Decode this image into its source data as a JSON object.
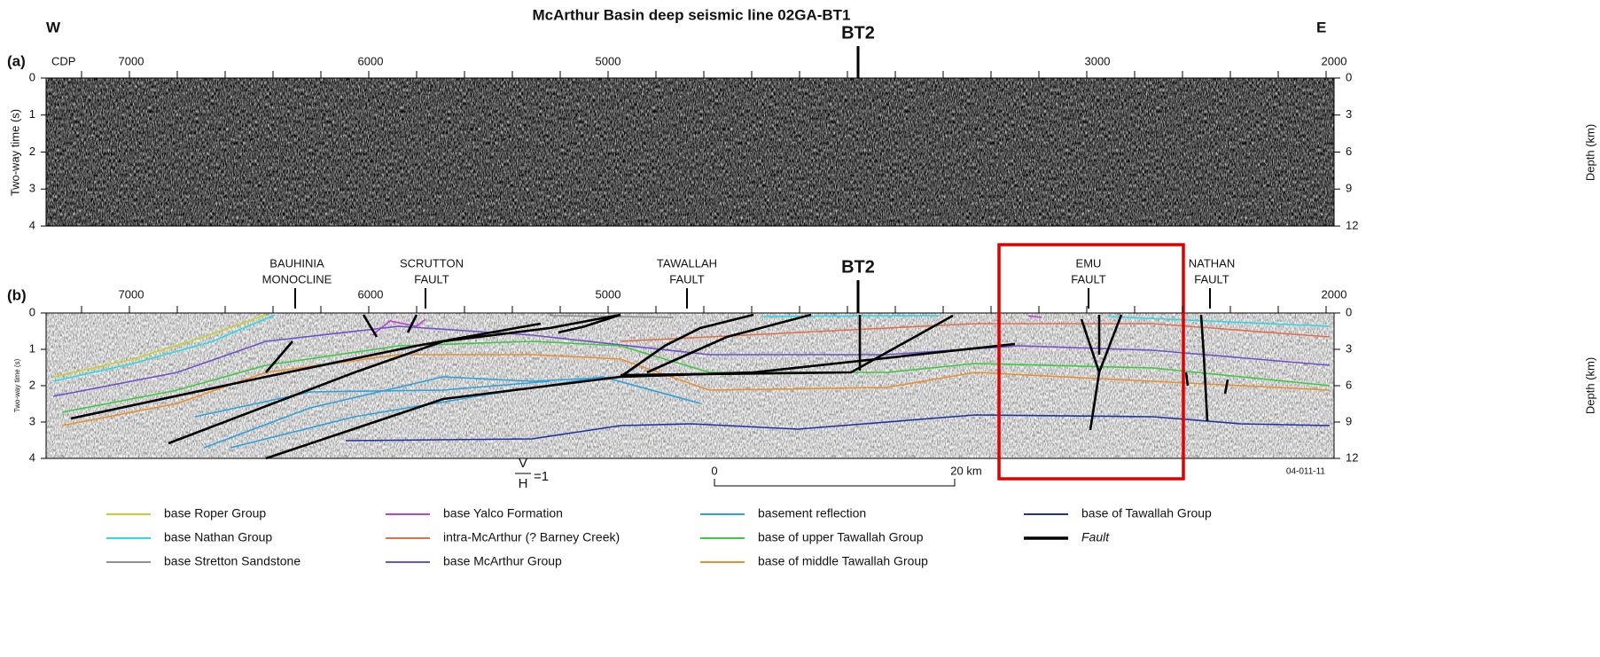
{
  "title": "McArthur Basin deep seismic line 02GA-BT1",
  "west": "W",
  "east": "E",
  "panel_a": {
    "label": "(a)",
    "cdp_label": "CDP",
    "marker": "BT2",
    "cdp_ticks": [
      "7000",
      "6000",
      "5000",
      "3000",
      "2000"
    ],
    "time_axis_title": "Two-way time (s)",
    "time_ticks": [
      "0",
      "1",
      "2",
      "3",
      "4"
    ],
    "depth_axis_title": "Depth (km)",
    "depth_ticks": [
      "0",
      "3",
      "6",
      "9",
      "12"
    ]
  },
  "panel_b": {
    "label": "(b)",
    "marker": "BT2",
    "structures": [
      {
        "lines": [
          "BAUHINIA",
          "MONOCLINE"
        ]
      },
      {
        "lines": [
          "SCRUTTON",
          "FAULT"
        ]
      },
      {
        "lines": [
          "TAWALLAH",
          "FAULT"
        ]
      },
      {
        "lines": [
          "EMU",
          "FAULT"
        ]
      },
      {
        "lines": [
          "NATHAN",
          "FAULT"
        ]
      }
    ],
    "cdp_ticks": [
      "7000",
      "6000",
      "5000",
      "2000"
    ],
    "time_axis_title": "Two-way time (s)",
    "time_ticks": [
      "0",
      "1",
      "2",
      "3",
      "4"
    ],
    "depth_axis_title": "Depth (km)",
    "depth_ticks": [
      "0",
      "3",
      "6",
      "9",
      "12"
    ]
  },
  "scale": {
    "ratio_top": "V",
    "ratio_bottom": "H",
    "ratio_eq": "=1",
    "start": "0",
    "end": "20 km"
  },
  "figure_id": "04-011-11",
  "legend": [
    {
      "label": "base Roper Group",
      "color": "#c8d030"
    },
    {
      "label": "base Nathan Group",
      "color": "#30d8e0"
    },
    {
      "label": "base Stretton Sandstone",
      "color": "#909090"
    },
    {
      "label": "base Yalco Formation",
      "color": "#c040d0"
    },
    {
      "label": "intra-McArthur (? Barney Creek)",
      "color": "#e07050"
    },
    {
      "label": "base McArthur Group",
      "color": "#7050c8"
    },
    {
      "label": "basement reflection",
      "color": "#30a0d8"
    },
    {
      "label": "base of upper Tawallah Group",
      "color": "#40c840"
    },
    {
      "label": "base of middle Tawallah Group",
      "color": "#e89030"
    },
    {
      "label": "base of Tawallah Group",
      "color": "#2030a0"
    },
    {
      "label": "Fault",
      "color": "#000000"
    }
  ]
}
